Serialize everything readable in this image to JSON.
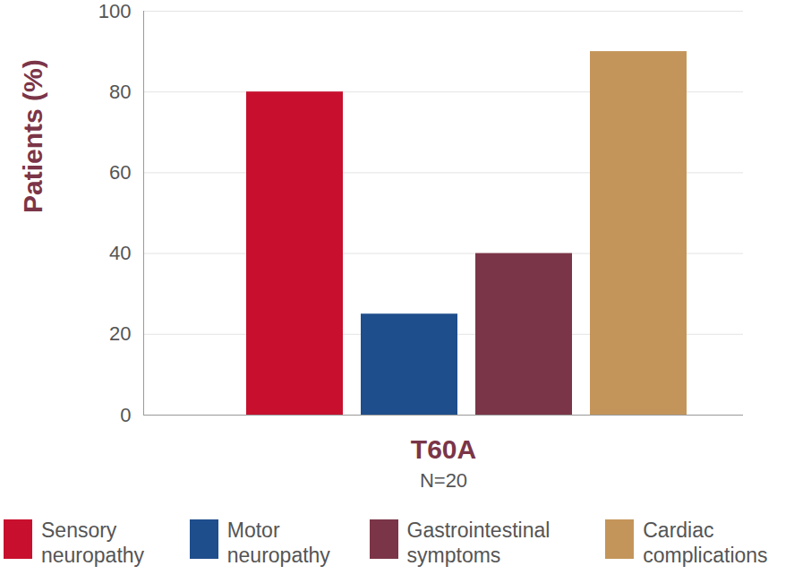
{
  "chart_data": {
    "type": "bar",
    "categories": [
      "T60A"
    ],
    "annotations": [
      "N=20"
    ],
    "ylabel": "Patients (%)",
    "series": [
      {
        "name": "Sensory neuropathy",
        "color": "#c8102e",
        "values": [
          80
        ]
      },
      {
        "name": "Motor neuropathy",
        "color": "#1f4e8c",
        "values": [
          25
        ]
      },
      {
        "name": "Gastrointestinal symptoms",
        "color": "#7b3548",
        "values": [
          40
        ]
      },
      {
        "name": "Cardiac complications",
        "color": "#c4955a",
        "values": [
          90
        ]
      }
    ],
    "ylim": [
      0,
      100
    ],
    "yticks": [
      0,
      20,
      40,
      60,
      80,
      100
    ],
    "grid": true,
    "legend": "bottom"
  }
}
